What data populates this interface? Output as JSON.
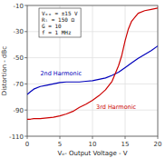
{
  "chart_data": {
    "type": "line",
    "title": "",
    "xlabel": "Vₒ- Output Voltage - V",
    "ylabel": "Distortion - dBc",
    "xlim": [
      0,
      20
    ],
    "ylim": [
      -110,
      -10
    ],
    "xticks": [
      0,
      5,
      10,
      15,
      20
    ],
    "yticks": [
      -110,
      -90,
      -70,
      -50,
      -30,
      -10
    ],
    "grid": true,
    "annotation": "Vₒₒ = ±15 V\nRₗ = 150 Ω\nG = 10\nf = 1 MHz",
    "series": [
      {
        "name": "2nd Harmonic",
        "color": "#0000bb",
        "x": [
          0,
          0.5,
          1,
          2,
          3,
          4,
          5,
          6,
          7,
          8,
          9,
          10,
          11,
          12,
          13,
          14,
          15,
          16,
          17,
          18,
          19,
          20
        ],
        "values": [
          -78,
          -76,
          -74,
          -72,
          -71,
          -70,
          -69,
          -68.5,
          -68.5,
          -68.5,
          -68,
          -67.5,
          -66.5,
          -65.5,
          -63.5,
          -61,
          -57.5,
          -54,
          -50.5,
          -47.5,
          -44.5,
          -41
        ]
      },
      {
        "name": "3rd Harmonic",
        "color": "#cc0000",
        "x": [
          0,
          0.5,
          1,
          2,
          3,
          4,
          5,
          6,
          7,
          8,
          9,
          10,
          11,
          12,
          13,
          14,
          14.5,
          15,
          15.5,
          16,
          17,
          18,
          19,
          20
        ],
        "values": [
          -97,
          -97,
          -96.5,
          -96.5,
          -96,
          -95.5,
          -94.5,
          -93,
          -91,
          -88,
          -85.5,
          -82.5,
          -79,
          -74.5,
          -68,
          -56,
          -48,
          -37,
          -28,
          -22,
          -16,
          -14,
          -13,
          -12
        ]
      }
    ]
  }
}
